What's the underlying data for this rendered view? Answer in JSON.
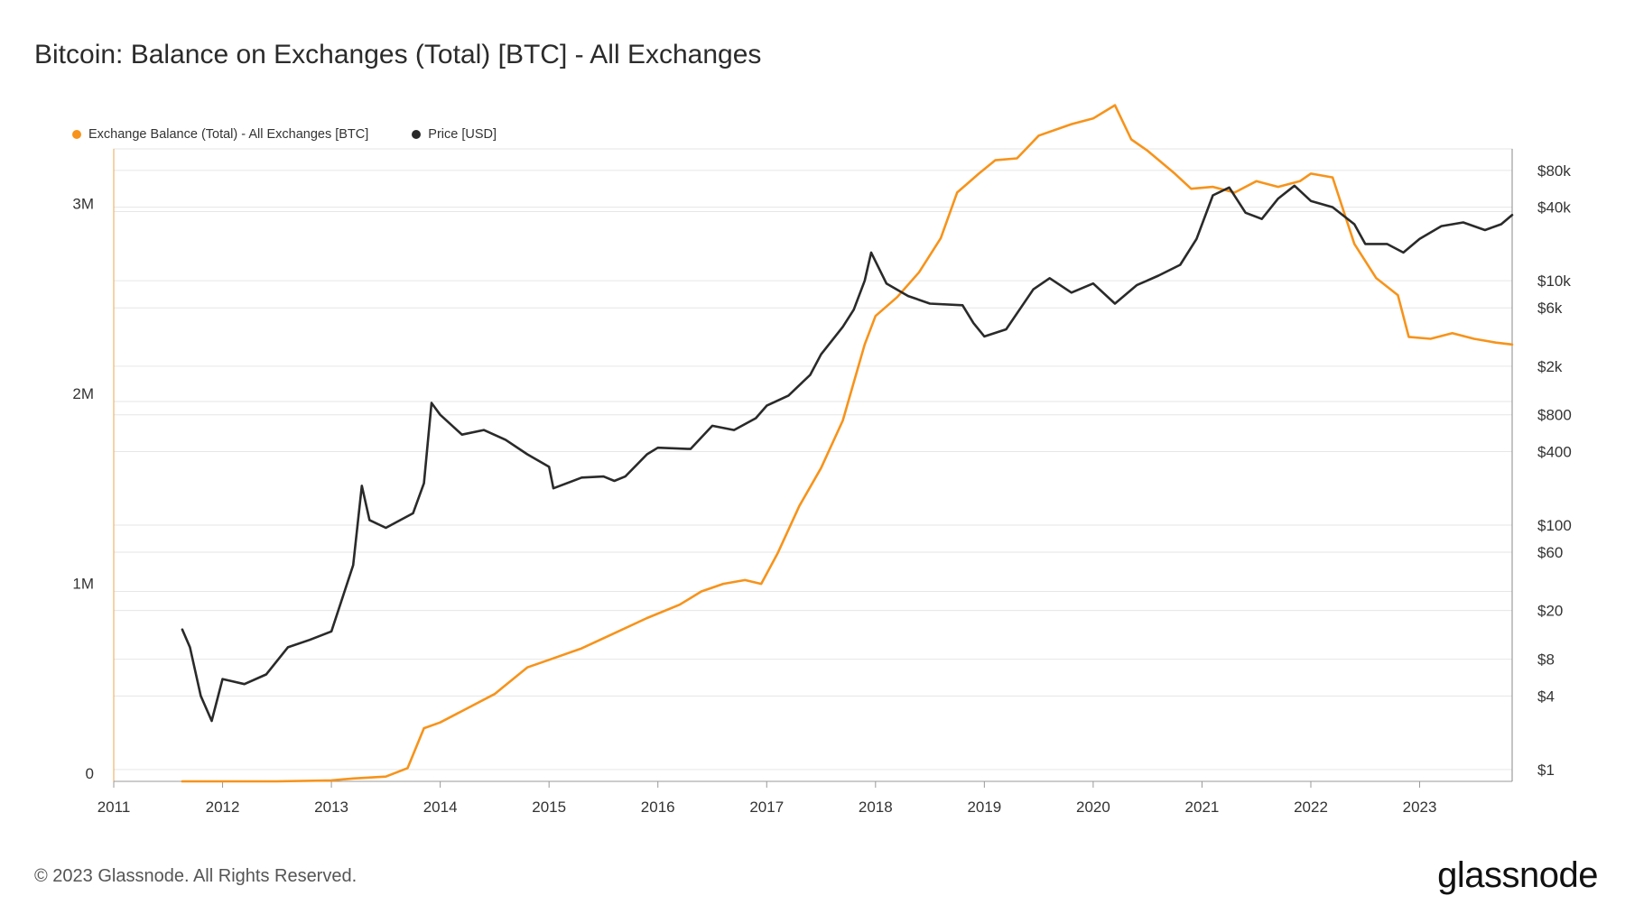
{
  "title": "Bitcoin: Balance on Exchanges (Total) [BTC] - All Exchanges",
  "footer": "© 2023 Glassnode. All Rights Reserved.",
  "logo": "glassnode",
  "colors": {
    "balance": "#f7931a",
    "price": "#2a2a2a",
    "grid": "#e6e6e6",
    "axis": "#cccccc"
  },
  "chart_data": {
    "type": "line",
    "title": "Bitcoin: Balance on Exchanges (Total) [BTC] - All Exchanges",
    "xlabel": "",
    "ylabel": "",
    "x_ticks": [
      "2011",
      "2012",
      "2013",
      "2014",
      "2015",
      "2016",
      "2017",
      "2018",
      "2019",
      "2020",
      "2021",
      "2022",
      "2023"
    ],
    "xlim": [
      2011.0,
      2023.85
    ],
    "y_left": {
      "ticks": [
        0,
        1000000,
        2000000,
        3000000
      ],
      "tick_labels": [
        "0",
        "1M",
        "2M",
        "3M"
      ],
      "ylim": [
        0,
        3330000
      ]
    },
    "y_right": {
      "scale": "log",
      "ticks": [
        1,
        4,
        8,
        20,
        60,
        100,
        400,
        800,
        2000,
        6000,
        10000,
        40000,
        80000
      ],
      "tick_labels": [
        "$1",
        "$4",
        "$8",
        "$20",
        "$60",
        "$100",
        "$400",
        "$800",
        "$2k",
        "$6k",
        "$10k",
        "$40k",
        "$80k"
      ],
      "ylim": [
        0.8,
        120000
      ]
    },
    "grid": true,
    "legend_position": "top-left",
    "series": [
      {
        "name": "Exchange Balance (Total) - All Exchanges [BTC]",
        "axis": "left",
        "color": "#f7931a",
        "x": [
          2011.63,
          2012.0,
          2012.5,
          2013.0,
          2013.2,
          2013.5,
          2013.7,
          2013.85,
          2014.0,
          2014.2,
          2014.5,
          2014.8,
          2015.0,
          2015.3,
          2015.6,
          2015.9,
          2016.2,
          2016.4,
          2016.6,
          2016.8,
          2016.95,
          2017.1,
          2017.3,
          2017.5,
          2017.7,
          2017.8,
          2017.9,
          2018.0,
          2018.1,
          2018.2,
          2018.4,
          2018.6,
          2018.75,
          2018.85,
          2018.95,
          2019.1,
          2019.3,
          2019.5,
          2019.8,
          2020.0,
          2020.2,
          2020.35,
          2020.5,
          2020.75,
          2020.9,
          2021.1,
          2021.3,
          2021.5,
          2021.7,
          2021.9,
          2022.0,
          2022.2,
          2022.4,
          2022.6,
          2022.8,
          2022.9,
          2023.1,
          2023.3,
          2023.5,
          2023.7,
          2023.85
        ],
        "y": [
          0,
          0,
          0,
          5000,
          15000,
          25000,
          70000,
          280000,
          310000,
          370000,
          460000,
          600000,
          640000,
          700000,
          780000,
          860000,
          930000,
          1000000,
          1040000,
          1060000,
          1040000,
          1200000,
          1450000,
          1650000,
          1900000,
          2100000,
          2300000,
          2450000,
          2500000,
          2550000,
          2680000,
          2860000,
          3100000,
          3150000,
          3200000,
          3270000,
          3280000,
          3400000,
          3460000,
          3490000,
          3560000,
          3380000,
          3320000,
          3200000,
          3120000,
          3130000,
          3100000,
          3160000,
          3130000,
          3160000,
          3200000,
          3180000,
          2830000,
          2650000,
          2560000,
          2340000,
          2330000,
          2360000,
          2330000,
          2310000,
          2300000
        ]
      },
      {
        "name": "Price [USD]",
        "axis": "right",
        "color": "#2a2a2a",
        "x": [
          2011.63,
          2011.7,
          2011.8,
          2011.9,
          2012.0,
          2012.2,
          2012.4,
          2012.6,
          2012.8,
          2013.0,
          2013.2,
          2013.28,
          2013.35,
          2013.5,
          2013.75,
          2013.85,
          2013.92,
          2014.0,
          2014.2,
          2014.4,
          2014.6,
          2014.8,
          2015.0,
          2015.04,
          2015.3,
          2015.5,
          2015.6,
          2015.7,
          2015.9,
          2016.0,
          2016.3,
          2016.5,
          2016.7,
          2016.9,
          2017.0,
          2017.2,
          2017.4,
          2017.5,
          2017.7,
          2017.8,
          2017.9,
          2017.96,
          2018.1,
          2018.3,
          2018.5,
          2018.8,
          2018.9,
          2019.0,
          2019.2,
          2019.45,
          2019.6,
          2019.8,
          2020.0,
          2020.2,
          2020.4,
          2020.6,
          2020.8,
          2020.95,
          2021.1,
          2021.25,
          2021.4,
          2021.55,
          2021.7,
          2021.85,
          2022.0,
          2022.2,
          2022.4,
          2022.5,
          2022.7,
          2022.85,
          2023.0,
          2023.2,
          2023.4,
          2023.6,
          2023.75,
          2023.85
        ],
        "y": [
          14,
          10,
          4,
          2.5,
          5.5,
          5,
          6,
          10,
          11.5,
          13.5,
          47,
          210,
          110,
          95,
          125,
          220,
          1000,
          800,
          550,
          600,
          500,
          380,
          300,
          200,
          245,
          250,
          230,
          250,
          380,
          430,
          420,
          650,
          600,
          750,
          950,
          1150,
          1700,
          2500,
          4200,
          5800,
          10000,
          17000,
          9500,
          7500,
          6500,
          6300,
          4500,
          3500,
          4000,
          8500,
          10500,
          8000,
          9500,
          6500,
          9200,
          11000,
          13500,
          22000,
          50000,
          58000,
          36000,
          32000,
          47000,
          60000,
          45000,
          40000,
          29000,
          20000,
          20000,
          17000,
          22000,
          28000,
          30000,
          26000,
          29000,
          34500
        ]
      }
    ]
  }
}
